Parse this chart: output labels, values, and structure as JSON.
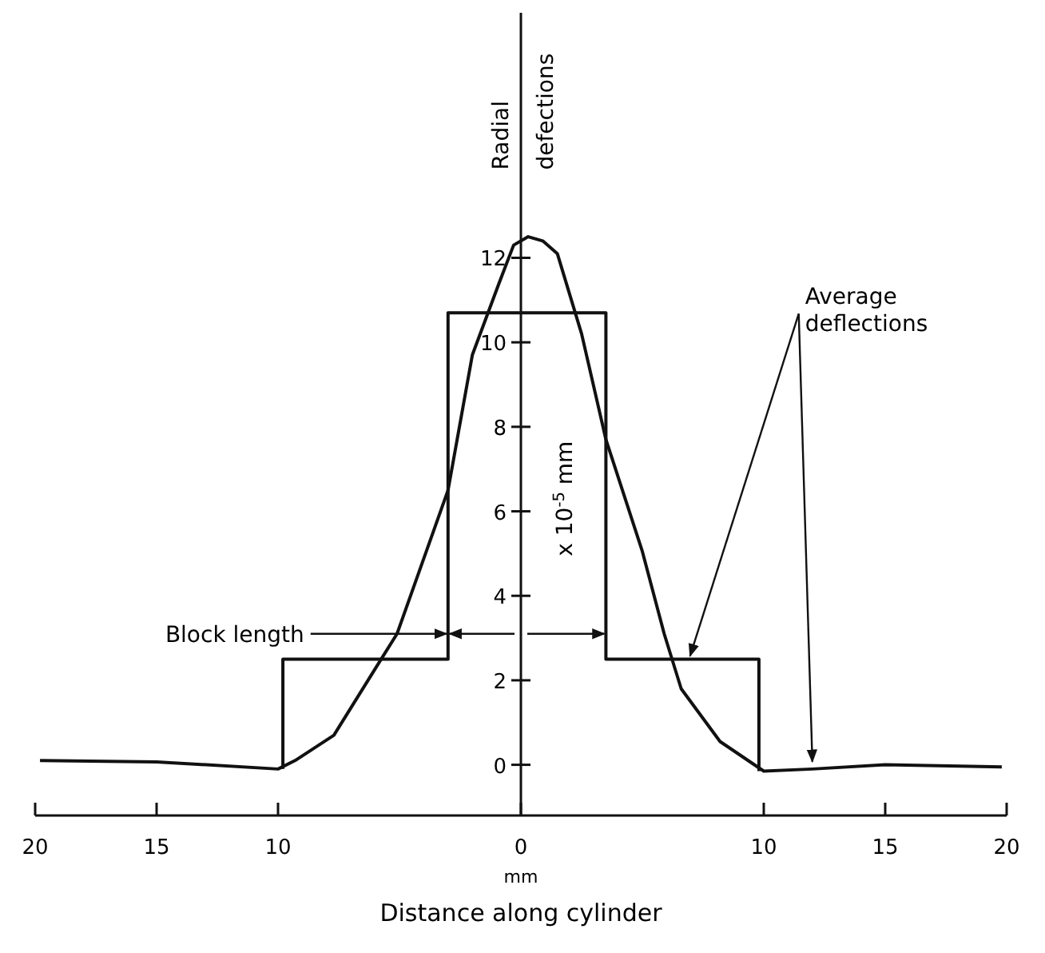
{
  "chart_data": {
    "type": "line",
    "xlabel": "Distance along cylinder",
    "ylabel": "Radial defections",
    "xlim": [
      -20,
      20
    ],
    "xticks": [
      {
        "value": -20,
        "label": "20"
      },
      {
        "value": -15,
        "label": "15"
      },
      {
        "value": -10,
        "label": "10"
      },
      0,
      10,
      15,
      20
    ],
    "ylim": [
      -1.2,
      17.8
    ],
    "yticks": [
      0,
      2,
      4,
      6,
      8,
      10,
      12
    ],
    "series": [
      {
        "color": "#111111",
        "x": [
          -19.8,
          -15,
          -10,
          -9.3,
          -7.7,
          -5.7,
          -5.1,
          -3,
          -2,
          -0.9,
          -0.3,
          0.3,
          0.9,
          1.5,
          2.5,
          3.5,
          5,
          5.9,
          6.6,
          8.2,
          10,
          12,
          15,
          19.8
        ],
        "values": [
          0.1,
          0.07,
          -0.1,
          0.1,
          0.7,
          2.55,
          3.1,
          6.5,
          9.7,
          11.4,
          12.3,
          12.5,
          12.4,
          12.1,
          10.2,
          7.7,
          5.05,
          3.1,
          1.8,
          0.55,
          -0.15,
          -0.1,
          0,
          -0.05
        ]
      },
      {
        "color": "#111111",
        "x": [
          -9.8,
          -9.8,
          -3,
          -3,
          3.5,
          3.5,
          9.8,
          9.8
        ],
        "values": [
          -0.1,
          2.5,
          2.5,
          10.7,
          10.7,
          2.5,
          2.5,
          -0.15
        ]
      }
    ],
    "annotations": [
      {
        "text": "Block length",
        "x": -3,
        "y": 3.1
      },
      {
        "text": "Average deflections",
        "x": 6.9,
        "y": 2.5
      },
      "x 10$^{-5}$ mm",
      "mm"
    ],
    "grid": false
  }
}
